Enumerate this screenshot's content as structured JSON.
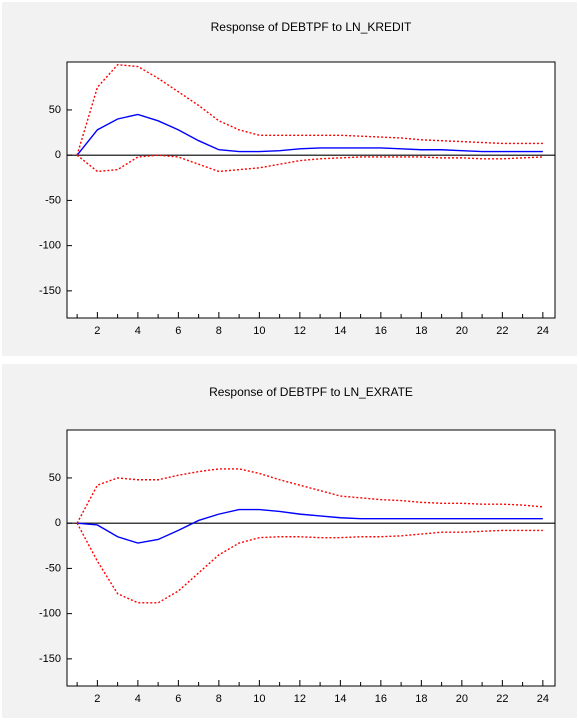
{
  "chart_data": [
    {
      "type": "line",
      "title": "Response of DEBTPF to LN_KREDIT",
      "x": [
        1,
        2,
        3,
        4,
        5,
        6,
        7,
        8,
        9,
        10,
        11,
        12,
        13,
        14,
        15,
        16,
        17,
        18,
        19,
        20,
        21,
        22,
        23,
        24
      ],
      "series": [
        {
          "color": "#0000ff",
          "dash": false,
          "values": [
            0,
            28,
            40,
            45,
            38,
            28,
            16,
            6,
            4,
            4,
            5,
            7,
            8,
            8,
            8,
            8,
            7,
            6,
            6,
            5,
            4,
            4,
            4,
            4
          ]
        },
        {
          "color": "#ff0000",
          "dash": true,
          "values": [
            0,
            75,
            100,
            98,
            85,
            70,
            55,
            38,
            28,
            22,
            22,
            22,
            22,
            22,
            21,
            20,
            19,
            17,
            16,
            15,
            14,
            13,
            13,
            13
          ]
        },
        {
          "color": "#ff0000",
          "dash": true,
          "values": [
            0,
            -18,
            -16,
            -2,
            0,
            -2,
            -10,
            -18,
            -16,
            -14,
            -10,
            -6,
            -4,
            -3,
            -2,
            -2,
            -2,
            -2,
            -3,
            -3,
            -4,
            -4,
            -3,
            -2
          ]
        }
      ],
      "xlim": [
        0.5,
        24.6
      ],
      "xticks": [
        2,
        4,
        6,
        8,
        10,
        12,
        14,
        16,
        18,
        20,
        22,
        24
      ],
      "ylim": [
        -180,
        103
      ],
      "yticks": [
        50,
        0,
        -50,
        -100,
        -150
      ],
      "zero_line": true
    },
    {
      "type": "line",
      "title": "Response of DEBTPF to LN_EXRATE",
      "x": [
        1,
        2,
        3,
        4,
        5,
        6,
        7,
        8,
        9,
        10,
        11,
        12,
        13,
        14,
        15,
        16,
        17,
        18,
        19,
        20,
        21,
        22,
        23,
        24
      ],
      "series": [
        {
          "color": "#0000ff",
          "dash": false,
          "values": [
            0,
            -2,
            -15,
            -22,
            -18,
            -8,
            3,
            10,
            15,
            15,
            13,
            10,
            8,
            6,
            5,
            5,
            5,
            5,
            5,
            5,
            5,
            5,
            5,
            5
          ]
        },
        {
          "color": "#ff0000",
          "dash": true,
          "values": [
            0,
            42,
            50,
            48,
            48,
            53,
            57,
            60,
            60,
            55,
            48,
            42,
            36,
            30,
            28,
            26,
            25,
            23,
            22,
            22,
            21,
            21,
            20,
            18
          ]
        },
        {
          "color": "#ff0000",
          "dash": true,
          "values": [
            0,
            -42,
            -78,
            -88,
            -88,
            -75,
            -55,
            -35,
            -22,
            -16,
            -15,
            -15,
            -16,
            -16,
            -15,
            -15,
            -14,
            -12,
            -10,
            -10,
            -9,
            -8,
            -8,
            -8
          ]
        }
      ],
      "xlim": [
        0.5,
        24.6
      ],
      "xticks": [
        2,
        4,
        6,
        8,
        10,
        12,
        14,
        16,
        18,
        20,
        22,
        24
      ],
      "ylim": [
        -180,
        103
      ],
      "yticks": [
        50,
        0,
        -50,
        -100,
        -150
      ],
      "zero_line": true
    }
  ]
}
